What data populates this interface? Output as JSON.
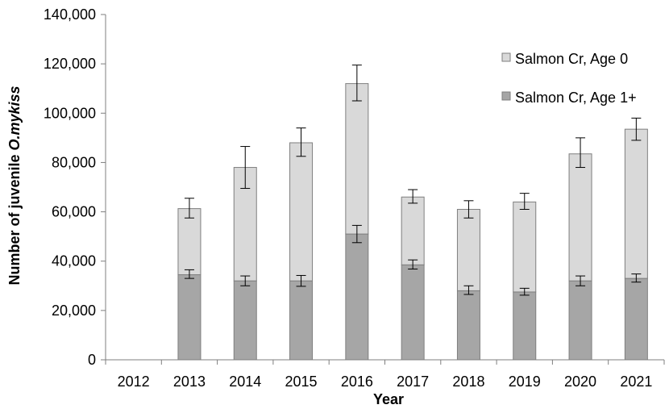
{
  "chart_data": {
    "type": "bar",
    "stacked": true,
    "xlabel": "Year",
    "ylabel_prefix": "Number of juvenile ",
    "ylabel_species": "O.mykiss",
    "ylim": [
      0,
      140000
    ],
    "yticks": [
      0,
      20000,
      40000,
      60000,
      80000,
      100000,
      120000,
      140000
    ],
    "ytick_labels": [
      "0",
      "20,000",
      "40,000",
      "60,000",
      "80,000",
      "100,000",
      "120,000",
      "140,000"
    ],
    "categories": [
      "2012",
      "2013",
      "2014",
      "2015",
      "2016",
      "2017",
      "2018",
      "2019",
      "2020",
      "2021"
    ],
    "series": [
      {
        "name": "Salmon Cr, Age 1+",
        "color": "#a6a6a6",
        "values": [
          0,
          34500,
          32000,
          32000,
          51000,
          38500,
          28000,
          27500,
          32000,
          33000
        ],
        "error_low": [
          null,
          33000,
          30000,
          29800,
          47500,
          36800,
          26500,
          26200,
          30000,
          31500
        ],
        "error_high": [
          null,
          36500,
          34000,
          34200,
          54500,
          40500,
          30000,
          29000,
          34000,
          34800
        ]
      },
      {
        "name": "Salmon Cr, Age 0",
        "color": "#d9d9d9",
        "values": [
          0,
          26800,
          46000,
          56000,
          61000,
          27500,
          33000,
          36500,
          51500,
          60500
        ],
        "error_low": [
          null,
          57500,
          69500,
          82500,
          105000,
          63500,
          57500,
          61000,
          78000,
          89000
        ],
        "error_high": [
          null,
          65500,
          86500,
          94000,
          119500,
          69000,
          64500,
          67500,
          90000,
          98000
        ]
      }
    ],
    "legend": {
      "position": "top-right",
      "entries": [
        "Salmon Cr, Age 0",
        "Salmon Cr, Age 1+"
      ]
    },
    "grid": false
  }
}
